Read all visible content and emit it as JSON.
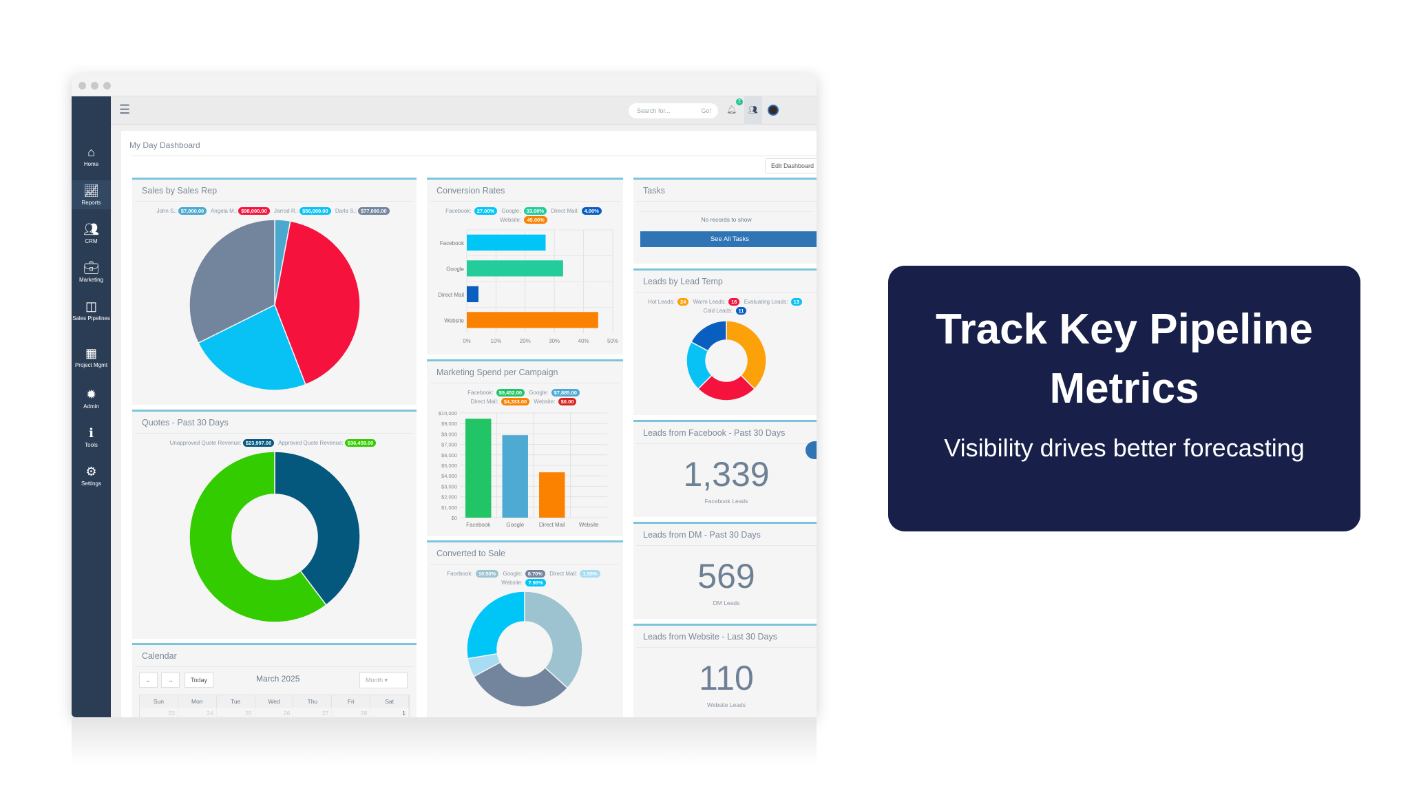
{
  "sidebar": {
    "items": [
      {
        "label": "Home",
        "icon": "home-icon"
      },
      {
        "label": "Reports",
        "icon": "chart-line-icon"
      },
      {
        "label": "CRM",
        "icon": "users-icon"
      },
      {
        "label": "Marketing",
        "icon": "briefcase-icon"
      },
      {
        "label": "Sales Pipelines",
        "icon": "columns-icon"
      },
      {
        "label": "Project Mgmt",
        "icon": "table-icon"
      },
      {
        "label": "Admin",
        "icon": "cog-burst-icon"
      },
      {
        "label": "Tools",
        "icon": "info-icon"
      },
      {
        "label": "Settings",
        "icon": "gear-icon"
      }
    ]
  },
  "topbar": {
    "search_placeholder": "Search for...",
    "go_label": "Go!",
    "notification_count": "2"
  },
  "page": {
    "title": "My Day Dashboard",
    "edit_label": "Edit Dashboard"
  },
  "sales_by_rep": {
    "title": "Sales by Sales Rep",
    "items": [
      {
        "name": "John S.:",
        "value": "$7,000.00",
        "amount": 7000,
        "color": "#4aa8cf"
      },
      {
        "name": "Angela M.:",
        "value": "$98,000.00",
        "amount": 98000,
        "color": "#f5123d"
      },
      {
        "name": "Jarrod R.:",
        "value": "$56,000.00",
        "amount": 56000,
        "color": "#08c2f5"
      },
      {
        "name": "Darla S.:",
        "value": "$77,000.00",
        "amount": 77000,
        "color": "#72859c"
      }
    ]
  },
  "quotes": {
    "title": "Quotes - Past 30 Days",
    "items": [
      {
        "name": "Unapproved Quote Revenue:",
        "value": "$23,997.00",
        "amount": 23997,
        "color": "#04577d"
      },
      {
        "name": "Approved Quote Revenue:",
        "value": "$36,459.00",
        "amount": 36459,
        "color": "#33cc00"
      }
    ]
  },
  "calendar": {
    "title": "Calendar",
    "month": "March 2025",
    "today_label": "Today",
    "view": "Month",
    "days": [
      "Sun",
      "Mon",
      "Tue",
      "Wed",
      "Thu",
      "Fri",
      "Sat"
    ],
    "first_row": [
      "23",
      "24",
      "25",
      "26",
      "27",
      "28",
      "1"
    ]
  },
  "chart_data": [
    {
      "type": "bar",
      "orientation": "horizontal",
      "title": "Conversion Rates",
      "categories": [
        "Facebook",
        "Google",
        "Direct Mail",
        "Website"
      ],
      "values": [
        27,
        33,
        4,
        45
      ],
      "labels": [
        "27.00%",
        "33.00%",
        "4.00%",
        "45.00%"
      ],
      "colors": [
        "#00c6f8",
        "#24cc9c",
        "#0a5ec0",
        "#fb8100"
      ],
      "xlim": [
        0,
        50
      ],
      "ticks": [
        "0%",
        "10%",
        "20%",
        "30%",
        "40%",
        "50%"
      ],
      "grid": true,
      "legend": "top"
    },
    {
      "type": "bar",
      "title": "Marketing Spend per Campaign",
      "categories": [
        "Facebook",
        "Google",
        "Direct Mail",
        "Website"
      ],
      "values": [
        9452,
        7885,
        4333,
        0
      ],
      "labels": [
        "$9,452.00",
        "$7,885.00",
        "$4,333.00",
        "$0.00"
      ],
      "colors": [
        "#22c566",
        "#4eaad2",
        "#fb8100",
        "#d9221b"
      ],
      "ylim": [
        0,
        10000
      ],
      "ticks": [
        "$0",
        "$1,000",
        "$2,000",
        "$3,000",
        "$4,000",
        "$5,000",
        "$6,000",
        "$7,000",
        "$8,000",
        "$9,000",
        "$10,000"
      ],
      "grid": true,
      "legend": "top"
    },
    {
      "type": "pie",
      "donut": true,
      "title": "Converted to Sale",
      "categories": [
        "Facebook",
        "Google",
        "Direct Mail",
        "Website"
      ],
      "values": [
        10.5,
        8.7,
        1.5,
        7.9
      ],
      "labels": [
        "10.50%",
        "8.70%",
        "1.50%",
        "7.90%"
      ],
      "colors": [
        "#9cc3cf",
        "#72859c",
        "#a8dcf2",
        "#00c6f8"
      ],
      "legend": "top"
    },
    {
      "type": "pie",
      "donut": true,
      "title": "Leads by Lead Temp",
      "categories": [
        "Hot Leads",
        "Warm Leads",
        "Evaluating Leads",
        "Cold Leads"
      ],
      "values": [
        24,
        16,
        13,
        11
      ],
      "labels": [
        "24",
        "16",
        "13",
        "11"
      ],
      "colors": [
        "#fca10a",
        "#f5123d",
        "#08c2f5",
        "#0a5ec0"
      ],
      "legend": "top"
    }
  ],
  "tasks": {
    "title": "Tasks",
    "empty": "No records to show",
    "button": "See All Tasks"
  },
  "leads_facebook": {
    "title": "Leads from Facebook - Past 30 Days",
    "value": "1,339",
    "label": "Facebook Leads"
  },
  "leads_dm": {
    "title": "Leads from DM - Past 30 Days",
    "value": "569",
    "label": "DM Leads"
  },
  "leads_website": {
    "title": "Leads from Website - Last 30 Days",
    "value": "110",
    "label": "Website Leads"
  },
  "callout": {
    "title": "Track Key Pipeline Metrics",
    "subtitle": "Visibility drives better forecasting",
    "background": "#18204a"
  }
}
